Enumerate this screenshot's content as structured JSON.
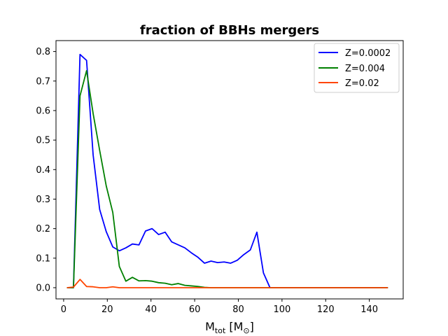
{
  "chart_data": {
    "type": "line",
    "title": "fraction of BBHs mergers",
    "xlabel": {
      "base": "M",
      "sub": "tot",
      "rest": " [M",
      "sub2": "⊙",
      "end": "]"
    },
    "ylabel": "",
    "xlim": [
      -3.5,
      155.5
    ],
    "ylim": [
      -0.038,
      0.837
    ],
    "xticks": [
      0,
      20,
      40,
      60,
      80,
      100,
      120,
      140
    ],
    "yticks": [
      0.0,
      0.1,
      0.2,
      0.3,
      0.4,
      0.5,
      0.6,
      0.7,
      0.8
    ],
    "xtick_labels": [
      "0",
      "20",
      "40",
      "60",
      "80",
      "100",
      "120",
      "140"
    ],
    "ytick_labels": [
      "0.0",
      "0.1",
      "0.2",
      "0.3",
      "0.4",
      "0.5",
      "0.6",
      "0.7",
      "0.8"
    ],
    "grid": false,
    "legend_placement": "upper-right",
    "series": [
      {
        "name": "Z=0.0002",
        "color": "#0000ff",
        "x": [
          1.5,
          4.5,
          7.5,
          10.5,
          13.5,
          16.5,
          19.5,
          22.5,
          25.5,
          28.5,
          31.5,
          34.5,
          37.5,
          40.5,
          43.5,
          46.5,
          49.5,
          52.5,
          55.5,
          58.5,
          61.5,
          64.5,
          67.5,
          70.5,
          73.5,
          76.5,
          79.5,
          82.5,
          85.5,
          88.5,
          91.5,
          94.5,
          97.5,
          100.5,
          148.5
        ],
        "y": [
          0.0,
          0.0,
          0.79,
          0.77,
          0.45,
          0.265,
          0.19,
          0.138,
          0.125,
          0.135,
          0.148,
          0.145,
          0.192,
          0.2,
          0.18,
          0.188,
          0.155,
          0.145,
          0.135,
          0.118,
          0.103,
          0.083,
          0.09,
          0.085,
          0.087,
          0.083,
          0.093,
          0.112,
          0.128,
          0.188,
          0.05,
          0.0,
          0.0,
          0.0,
          0.0
        ]
      },
      {
        "name": "Z=0.004",
        "color": "#008000",
        "x": [
          1.5,
          4.5,
          7.5,
          10.5,
          13.5,
          16.5,
          19.5,
          22.5,
          25.5,
          28.5,
          31.5,
          34.5,
          37.5,
          40.5,
          43.5,
          46.5,
          49.5,
          52.5,
          55.5,
          58.5,
          61.5,
          64.5,
          67.5,
          70.5,
          148.5
        ],
        "y": [
          0.0,
          0.0,
          0.65,
          0.735,
          0.59,
          0.465,
          0.345,
          0.255,
          0.072,
          0.022,
          0.035,
          0.023,
          0.024,
          0.022,
          0.017,
          0.015,
          0.01,
          0.014,
          0.008,
          0.006,
          0.004,
          0.001,
          0.0,
          0.0,
          0.0
        ]
      },
      {
        "name": "Z=0.02",
        "color": "#ff4500",
        "x": [
          1.5,
          4.5,
          7.5,
          10.5,
          13.5,
          16.5,
          19.5,
          22.5,
          25.5,
          28.5,
          148.5
        ],
        "y": [
          0.0,
          0.002,
          0.028,
          0.004,
          0.003,
          0.0,
          0.0,
          0.003,
          0.0,
          0.0,
          0.0
        ]
      }
    ]
  }
}
